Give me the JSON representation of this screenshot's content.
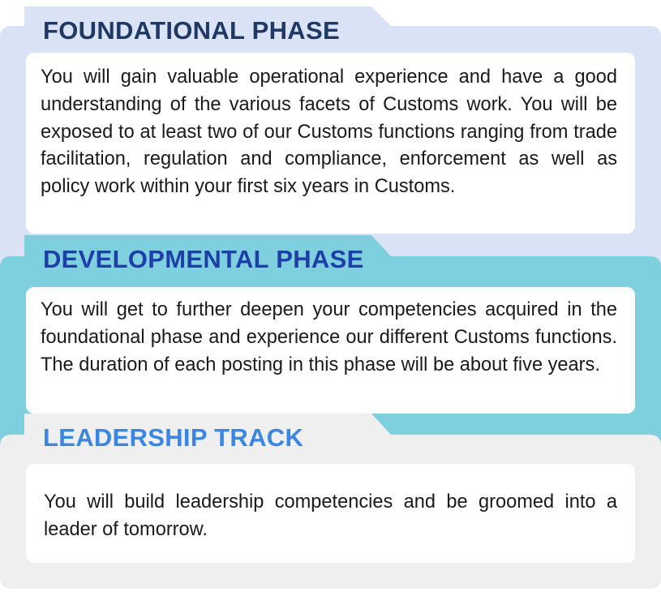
{
  "colors": {
    "foundational_bg": "#dae3f5",
    "developmental_bg": "#7fd0df",
    "leadership_bg": "#efefef",
    "foundational_title": "#1f3864",
    "developmental_title": "#1f3fa8",
    "leadership_title": "#3a86e0"
  },
  "phases": {
    "foundational": {
      "title": "FOUNDATIONAL PHASE",
      "text": "You will gain valuable operational experience and have a good understanding of the various facets of Customs work. You will be exposed to at least two of our Customs functions ranging from trade facilitation, regulation and compliance, enforcement as well as policy work within your first six years in Customs."
    },
    "developmental": {
      "title": "DEVELOPMENTAL PHASE",
      "text": "You will get to further deepen your competencies acquired in the foundational phase and experience our different Customs functions. The duration of each posting in this phase will be about five years."
    },
    "leadership": {
      "title": "LEADERSHIP TRACK",
      "text": "You will build leadership competencies and be groomed into a leader of tomorrow."
    }
  }
}
